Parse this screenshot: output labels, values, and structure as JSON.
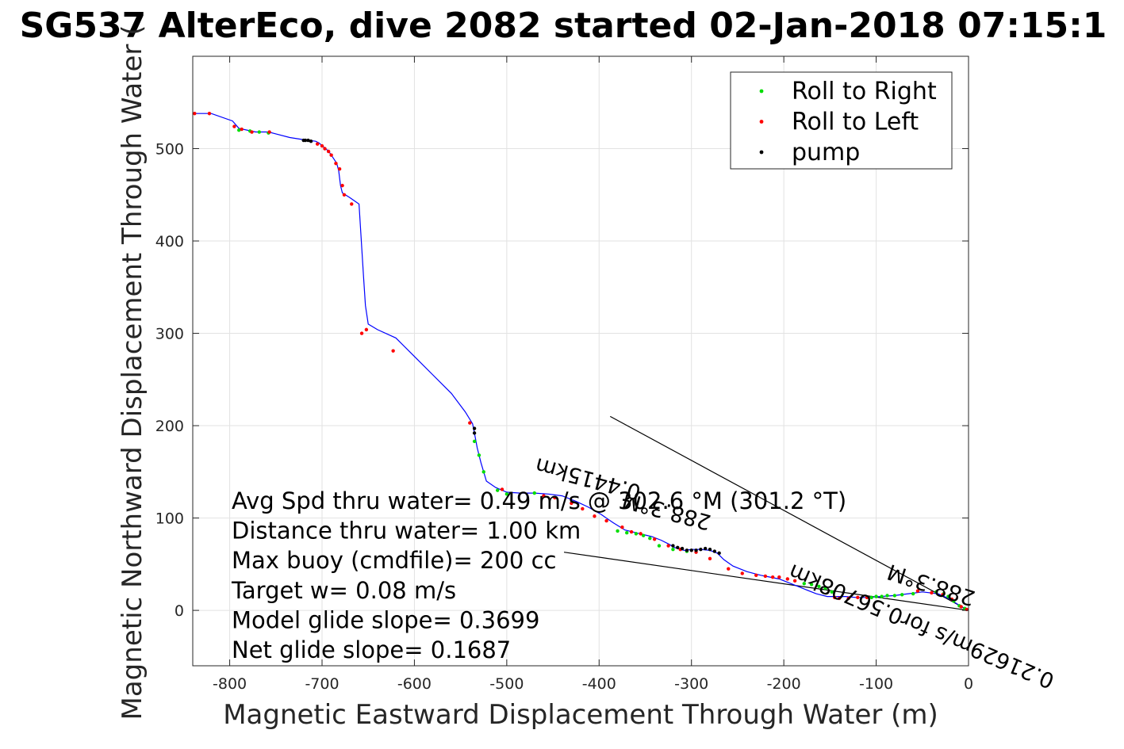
{
  "chart_data": {
    "type": "line",
    "title": "SG537 AlterEco, dive 2082 started 02-Jan-2018 07:15:1",
    "xlabel": "Magnetic Eastward Displacement Through Water (m)",
    "ylabel": "Magnetic Northward Displacement Through Water (",
    "xlim": [
      -840,
      0
    ],
    "ylim": [
      -60,
      600
    ],
    "xticks": [
      -800,
      -700,
      -600,
      -500,
      -400,
      -300,
      -200,
      -100,
      0
    ],
    "yticks": [
      0,
      100,
      200,
      300,
      400,
      500
    ],
    "grid": true,
    "legend_position": "top-right",
    "legend": [
      {
        "label": "Roll to Right",
        "color": "#00dd00"
      },
      {
        "label": "Roll to Left",
        "color": "#ff0000"
      },
      {
        "label": "pump",
        "color": "#000000"
      }
    ],
    "track": {
      "name": "track",
      "color": "#0000ff",
      "x": [
        0,
        -6,
        -14,
        -22,
        -33,
        -50,
        -65,
        -80,
        -95,
        -110,
        -122,
        -133,
        -145,
        -153,
        -165,
        -180,
        -195,
        -205,
        -215,
        -225,
        -240,
        -255,
        -265,
        -272,
        -280,
        -290,
        -300,
        -308,
        -318,
        -325,
        -333,
        -343,
        -352,
        -360,
        -372,
        -385,
        -398,
        -412,
        -425,
        -440,
        -455,
        -470,
        -485,
        -500,
        -512,
        -522,
        -528,
        -532,
        -535,
        -537,
        -545,
        -560,
        -580,
        -600,
        -620,
        -640,
        -650,
        -653,
        -655,
        -660,
        -670,
        -678,
        -680,
        -682,
        -684,
        -688,
        -692,
        -696,
        -700,
        -703,
        -707,
        -715,
        -722,
        -735,
        -750,
        -758,
        -765,
        -772,
        -790,
        -797,
        -820,
        -838
      ],
      "y": [
        0,
        3,
        8,
        13,
        18,
        20,
        18,
        16,
        15,
        14,
        14,
        15,
        15,
        15,
        18,
        24,
        30,
        34,
        36,
        38,
        42,
        48,
        55,
        62,
        65,
        66,
        66,
        65,
        68,
        72,
        76,
        80,
        82,
        84,
        87,
        95,
        104,
        112,
        118,
        124,
        126,
        127,
        127,
        128,
        133,
        140,
        160,
        176,
        192,
        202,
        215,
        235,
        255,
        275,
        295,
        304,
        310,
        330,
        360,
        440,
        447,
        452,
        460,
        476,
        484,
        490,
        496,
        500,
        503,
        506,
        508,
        509,
        510,
        512,
        516,
        518,
        518,
        518,
        522,
        530,
        538,
        538
      ]
    },
    "roll_right": {
      "x": [
        -4,
        -10,
        -16,
        -22,
        -27,
        -35,
        -60,
        -72,
        -80,
        -88,
        -94,
        -100,
        -105,
        -148,
        -155,
        -162,
        -170,
        -178,
        -305,
        -320,
        -335,
        -345,
        -352,
        -360,
        -370,
        -380,
        -470,
        -500,
        -510,
        -525,
        -530,
        -535,
        -758,
        -768,
        -778,
        -790
      ],
      "y": [
        2,
        5,
        10,
        15,
        18,
        20,
        18,
        17,
        16,
        16,
        15,
        15,
        14,
        20,
        24,
        26,
        28,
        29,
        64,
        66,
        70,
        78,
        81,
        83,
        84,
        86,
        127,
        126,
        130,
        150,
        168,
        183,
        517,
        518,
        519,
        520
      ]
    },
    "roll_left": {
      "x": [
        -2,
        -8,
        -18,
        -28,
        -40,
        -55,
        -110,
        -120,
        -130,
        -140,
        -145,
        -188,
        -196,
        -205,
        -212,
        -220,
        -230,
        -245,
        -260,
        -280,
        -295,
        -312,
        -325,
        -340,
        -355,
        -365,
        -375,
        -392,
        -405,
        -418,
        -430,
        -448,
        -460,
        -505,
        -540,
        -623,
        -652,
        -657,
        -668,
        -676,
        -678,
        -681,
        -685,
        -690,
        -693,
        -697,
        -700,
        -705,
        -757,
        -776,
        -787,
        -795,
        -822,
        -838
      ],
      "y": [
        1,
        4,
        12,
        17,
        19,
        21,
        14,
        14,
        13,
        13,
        14,
        32,
        34,
        36,
        36,
        37,
        38,
        40,
        45,
        56,
        63,
        66,
        70,
        77,
        83,
        85,
        90,
        97,
        102,
        110,
        116,
        122,
        124,
        131,
        203,
        281,
        304,
        300,
        440,
        450,
        460,
        478,
        484,
        493,
        497,
        500,
        503,
        505,
        518,
        518,
        521,
        524,
        538,
        538
      ]
    },
    "pump": {
      "x": [
        -270,
        -275,
        -280,
        -285,
        -290,
        -295,
        -300,
        -305,
        -310,
        -315,
        -320,
        -535,
        -535,
        -712,
        -715,
        -718,
        -720
      ],
      "y": [
        62,
        64,
        66,
        67,
        66,
        65,
        65,
        65,
        67,
        68,
        70,
        192,
        197,
        508,
        509,
        509,
        509
      ]
    },
    "reference_lines": [
      {
        "x": [
          0,
          -388
        ],
        "y": [
          0,
          210
        ]
      },
      {
        "x": [
          0,
          -438
        ],
        "y": [
          0,
          63
        ]
      }
    ],
    "vector_labels": [
      {
        "text": "0.21629m/s for0.56708km",
        "x": -48,
        "y": -10,
        "angle_deg": 203.0
      },
      {
        "text": "288.3°M",
        "x": -38,
        "y": 35,
        "angle_deg": 198.0
      },
      {
        "text": "0.4415km",
        "x": -410,
        "y": 150,
        "angle_deg": 195.0
      },
      {
        "text": "288.3°M",
        "x": -325,
        "y": 115,
        "angle_deg": 195.0
      }
    ],
    "annotations": [
      "Avg Spd thru water=  0.49 m/s @ 302.6 °M (301.2 °T)",
      "Distance thru water=  1.00 km",
      "Max buoy (cmdfile)= 200 cc",
      "Target w= 0.08 m/s",
      "Model glide slope= 0.3699",
      "Net glide slope= 0.1687"
    ]
  }
}
